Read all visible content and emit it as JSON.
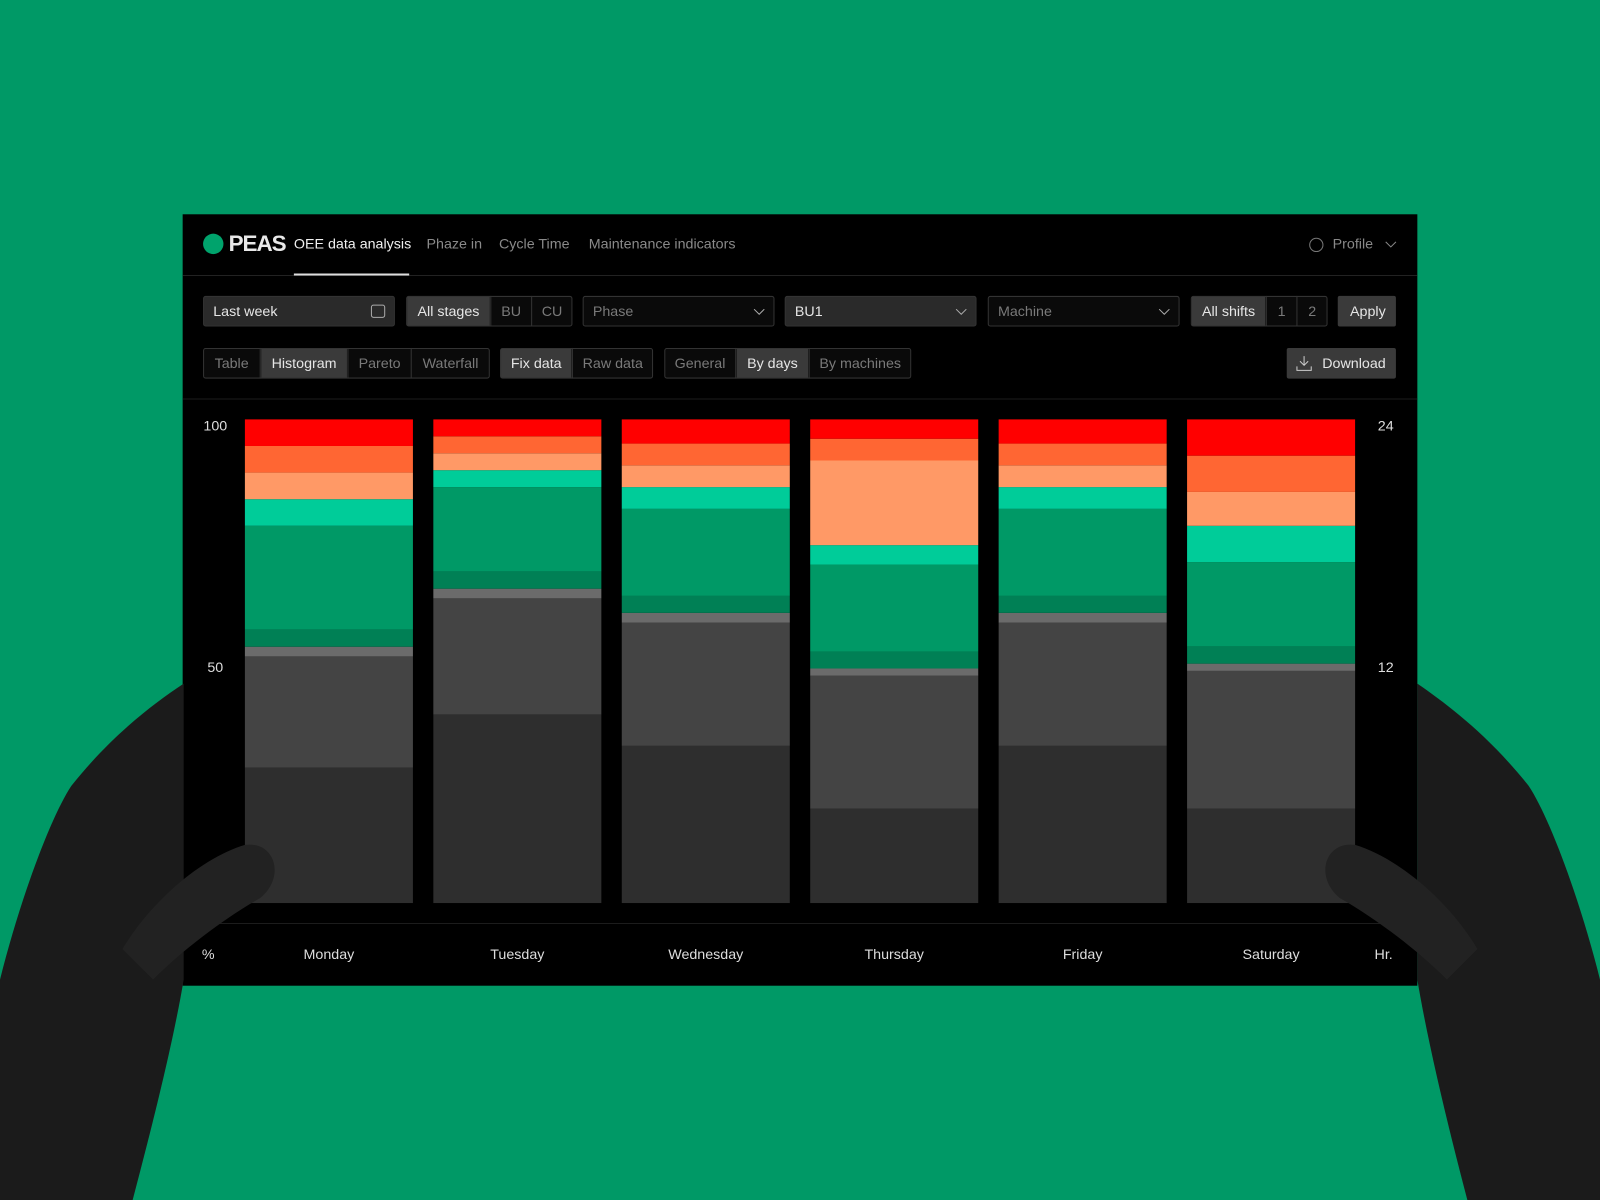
{
  "nav": {
    "logo": "PEAS",
    "items": [
      "OEE data analysis",
      "Phaze in",
      "Cycle Time",
      "Maintenance indicators"
    ],
    "profile": "Profile"
  },
  "filters": {
    "date": "Last week",
    "stages": [
      "All stages",
      "BU",
      "CU"
    ],
    "phase": "Phase",
    "bu": "BU1",
    "machine": "Machine",
    "shifts": [
      "All shifts",
      "1",
      "2"
    ],
    "apply": "Apply"
  },
  "views": {
    "chart_types": [
      "Table",
      "Histogram",
      "Pareto",
      "Waterfall"
    ],
    "data_modes": [
      "Fix data",
      "Raw data"
    ],
    "groupings": [
      "General",
      "By days",
      "By machines"
    ],
    "download": "Download"
  },
  "chart_data": {
    "type": "stacked-bar",
    "categories": [
      "Monday",
      "Tuesday",
      "Wednesday",
      "Thursday",
      "Friday",
      "Saturday"
    ],
    "series": [
      {
        "color": "#2e2e2e",
        "values": [
          28,
          39,
          32.5,
          19.5,
          32.5,
          19.5
        ]
      },
      {
        "color": "#444444",
        "values": [
          23,
          24,
          25.5,
          27.5,
          25.5,
          28.5
        ]
      },
      {
        "color": "#6b6b6b",
        "values": [
          2,
          2,
          2,
          1.5,
          2,
          1.5
        ]
      },
      {
        "color": "#008055",
        "values": [
          3.5,
          3.5,
          3.5,
          3.5,
          3.5,
          3.5
        ]
      },
      {
        "color": "#009966",
        "values": [
          21.5,
          17.5,
          18,
          18,
          18,
          17.5
        ]
      },
      {
        "color": "#00cc99",
        "values": [
          5.5,
          3.5,
          4.5,
          4,
          4.5,
          7.5
        ]
      },
      {
        "color": "#ff9966",
        "values": [
          5.5,
          3.5,
          4.5,
          17.5,
          4.5,
          7
        ]
      },
      {
        "color": "#ff6633",
        "values": [
          5.5,
          3.5,
          4.5,
          4.5,
          4.5,
          7.5
        ]
      },
      {
        "color": "#ff0000",
        "values": [
          5.5,
          3.5,
          5,
          4,
          5,
          7.5
        ]
      }
    ],
    "ylim": [
      0,
      100
    ],
    "yticks": [
      50,
      100
    ],
    "y_label": "%",
    "y2lim": [
      0,
      24
    ],
    "y2ticks": [
      12,
      24
    ],
    "y2_label": "Hr."
  }
}
